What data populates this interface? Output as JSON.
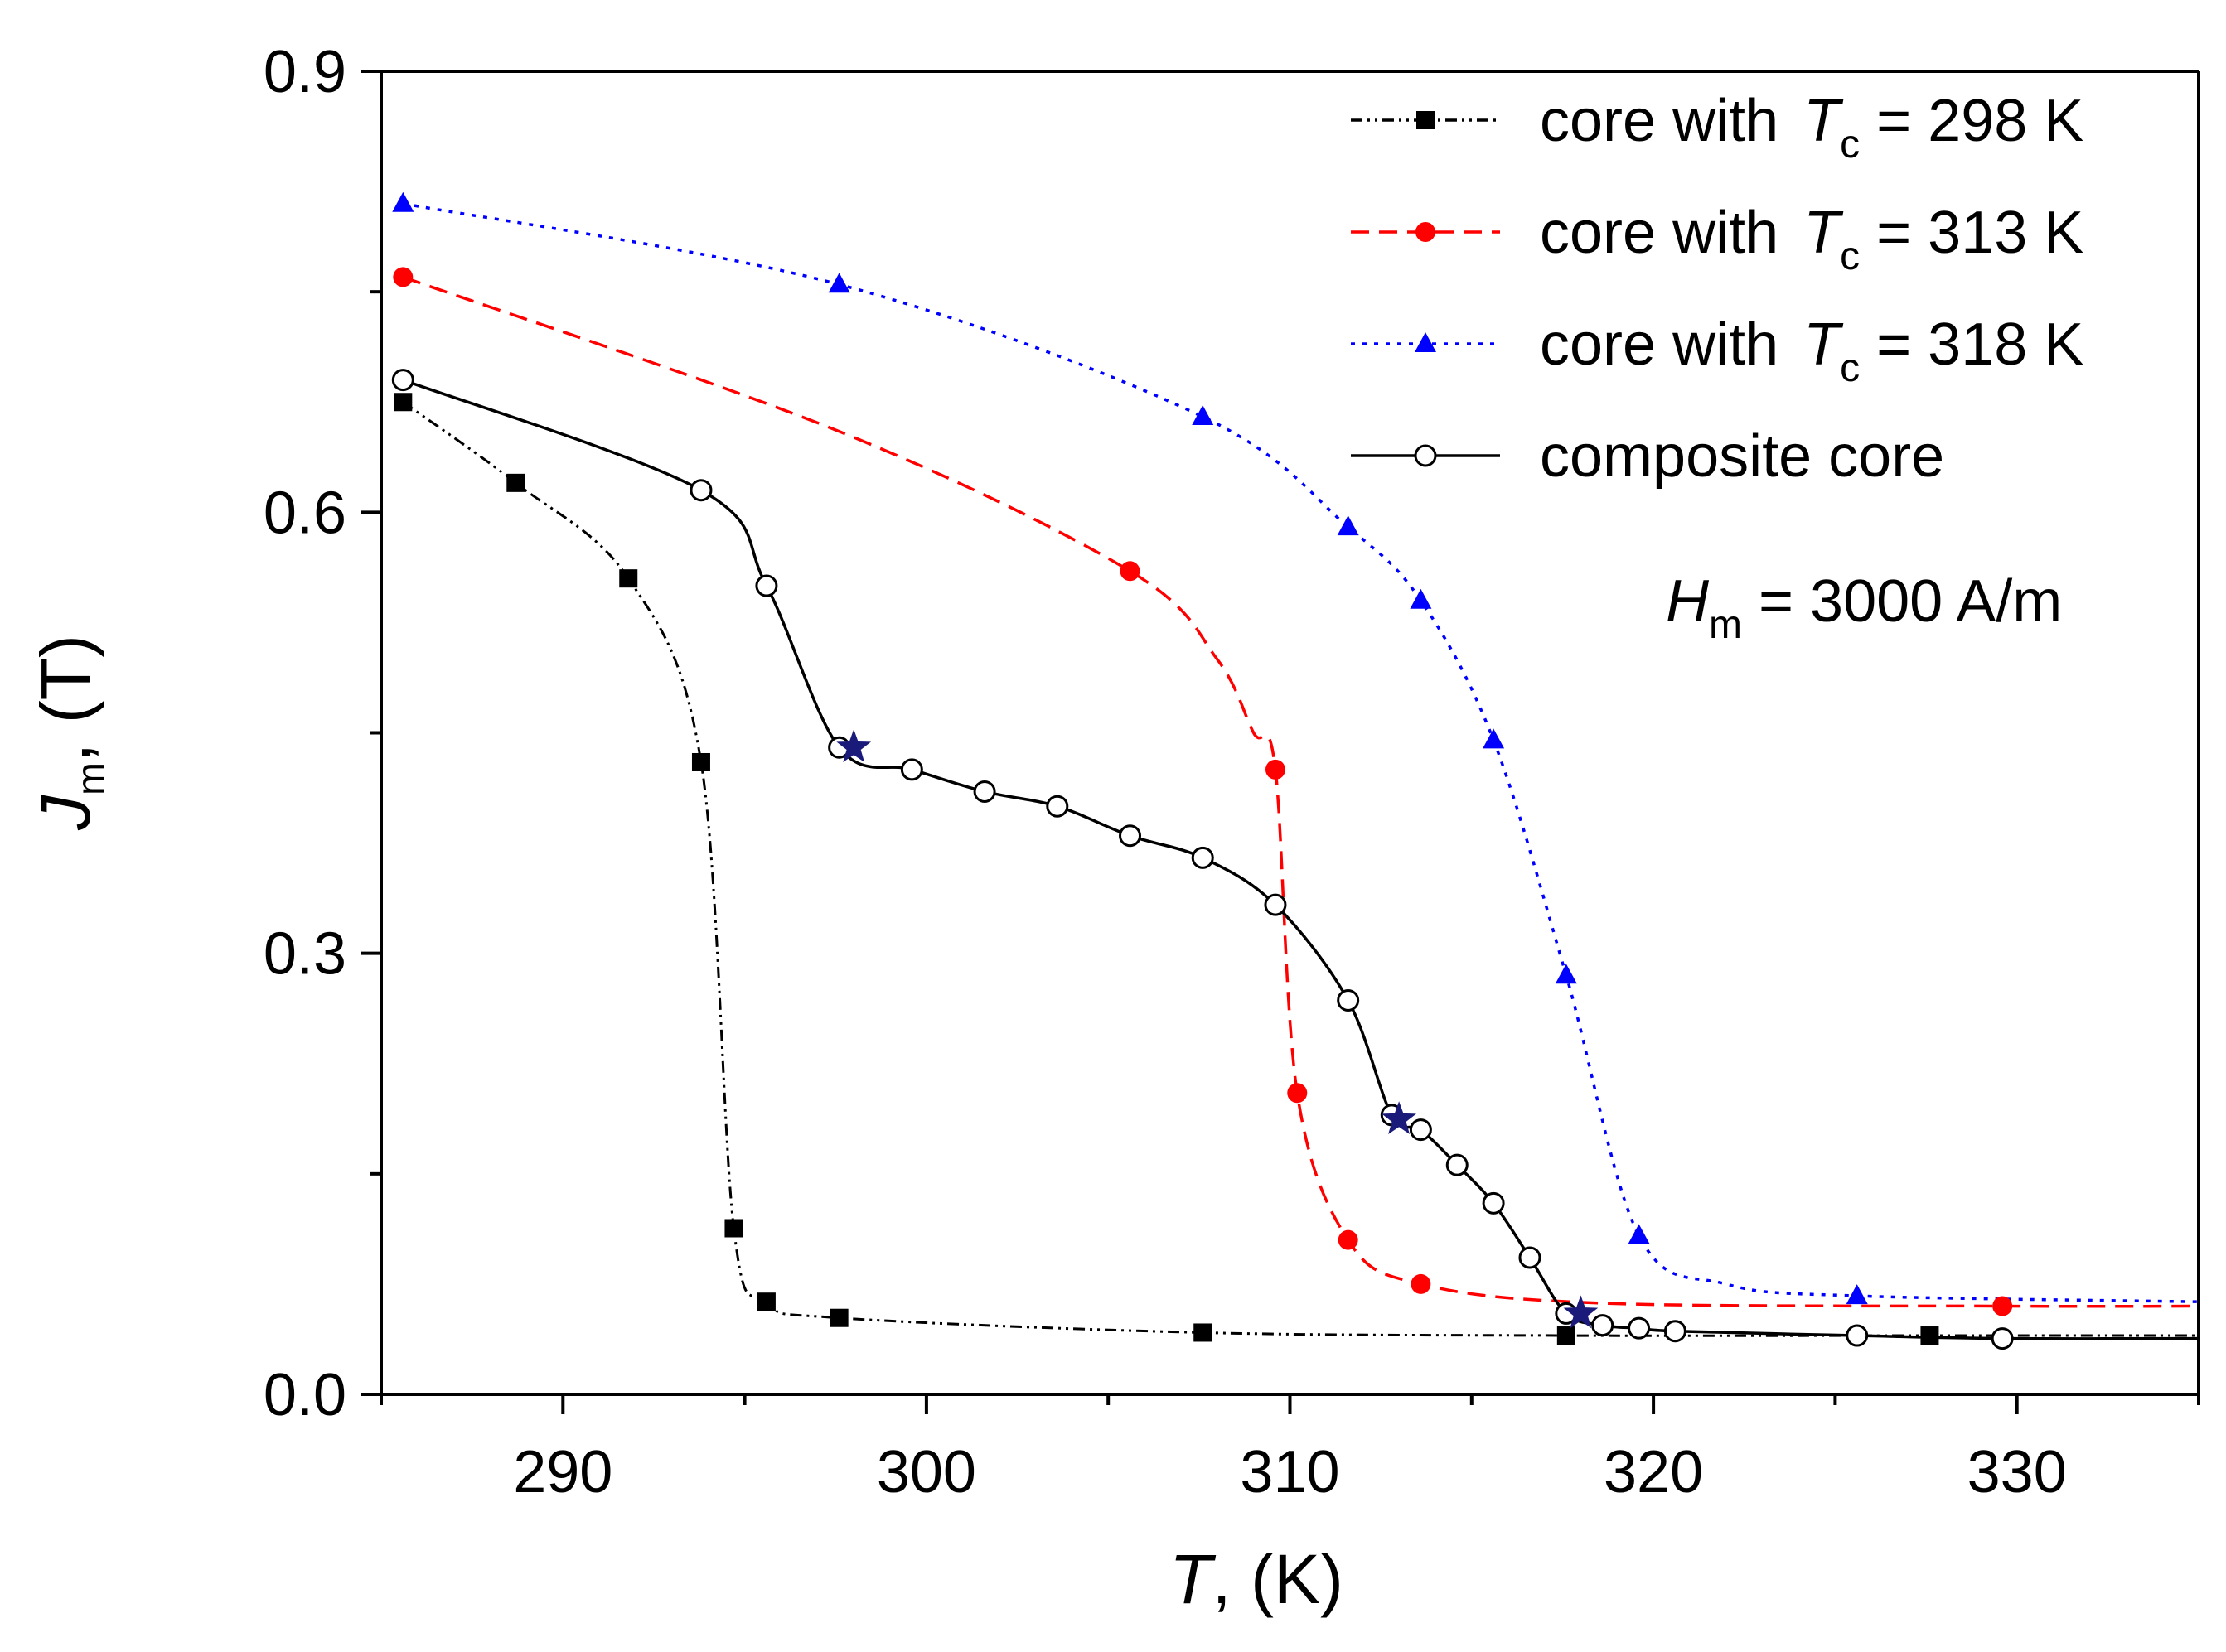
{
  "chart_data": {
    "type": "line",
    "title": "",
    "xlabel_main": "T",
    "xlabel_unit": ", (K)",
    "ylabel_main": "J",
    "ylabel_sub": "m",
    "ylabel_unit": ", (T)",
    "xlim": [
      285,
      335
    ],
    "ylim": [
      0.0,
      0.9
    ],
    "xticks": [
      290,
      300,
      310,
      320,
      330
    ],
    "xtick_labels": [
      "290",
      "300",
      "310",
      "320",
      "330"
    ],
    "yticks": [
      0.0,
      0.3,
      0.6,
      0.9
    ],
    "ytick_labels": [
      "0.0",
      "0.3",
      "0.6",
      "0.9"
    ],
    "legend_position": "top-right",
    "annotation": {
      "main": "H",
      "sub": "m",
      "rest": " = 3000 A/m"
    },
    "series": [
      {
        "key": "tc298",
        "legend_prefix": "core with ",
        "legend_var": "T",
        "legend_sub": "c",
        "legend_rest": " = 298 K",
        "color": "#000000",
        "dash": "14,6,3,6,3,6",
        "marker": "square",
        "points": [
          [
            285.6,
            0.675
          ],
          [
            288.7,
            0.62
          ],
          [
            291.8,
            0.555
          ],
          [
            293.8,
            0.43
          ],
          [
            294.7,
            0.113
          ],
          [
            295.6,
            0.063
          ],
          [
            297.6,
            0.052
          ],
          [
            307.6,
            0.042
          ],
          [
            317.6,
            0.04
          ],
          [
            327.6,
            0.04
          ],
          [
            329.6,
            0.04
          ],
          [
            335,
            0.04
          ]
        ],
        "marker_points": [
          [
            285.6,
            0.675
          ],
          [
            288.7,
            0.62
          ],
          [
            291.8,
            0.555
          ],
          [
            293.8,
            0.43
          ],
          [
            294.7,
            0.113
          ],
          [
            295.6,
            0.063
          ],
          [
            297.6,
            0.052
          ],
          [
            307.6,
            0.042
          ],
          [
            317.6,
            0.04
          ],
          [
            327.6,
            0.04
          ]
        ]
      },
      {
        "key": "tc313",
        "legend_prefix": "core with ",
        "legend_var": "T",
        "legend_sub": "c",
        "legend_rest": " = 313 K",
        "color": "#ff0000",
        "dash": "22,12",
        "marker": "circle",
        "points": [
          [
            285.6,
            0.76
          ],
          [
            297.6,
            0.655
          ],
          [
            305.6,
            0.56
          ],
          [
            308.0,
            0.5
          ],
          [
            309.0,
            0.45
          ],
          [
            309.6,
            0.425
          ],
          [
            310.2,
            0.205
          ],
          [
            311.6,
            0.105
          ],
          [
            313.6,
            0.075
          ],
          [
            318.6,
            0.062
          ],
          [
            329.6,
            0.06
          ],
          [
            335,
            0.06
          ]
        ],
        "marker_points": [
          [
            285.6,
            0.76
          ],
          [
            305.6,
            0.56
          ],
          [
            309.6,
            0.425
          ],
          [
            310.2,
            0.205
          ],
          [
            311.6,
            0.105
          ],
          [
            313.6,
            0.075
          ],
          [
            329.6,
            0.06
          ]
        ]
      },
      {
        "key": "tc318",
        "legend_prefix": "core with ",
        "legend_var": "T",
        "legend_sub": "c",
        "legend_rest": " = 318 K",
        "color": "#0000ff",
        "dash": "5,9",
        "marker": "triangle",
        "points": [
          [
            285.6,
            0.81
          ],
          [
            297.6,
            0.755
          ],
          [
            307.6,
            0.665
          ],
          [
            311.6,
            0.59
          ],
          [
            313.6,
            0.54
          ],
          [
            315.6,
            0.445
          ],
          [
            317.6,
            0.285
          ],
          [
            319.6,
            0.108
          ],
          [
            322.0,
            0.075
          ],
          [
            325.6,
            0.067
          ],
          [
            335,
            0.063
          ]
        ],
        "marker_points": [
          [
            285.6,
            0.81
          ],
          [
            297.6,
            0.755
          ],
          [
            307.6,
            0.665
          ],
          [
            311.6,
            0.59
          ],
          [
            313.6,
            0.54
          ],
          [
            315.6,
            0.445
          ],
          [
            317.6,
            0.285
          ],
          [
            319.6,
            0.108
          ],
          [
            325.6,
            0.067
          ]
        ]
      },
      {
        "key": "composite",
        "legend_prefix": "composite core",
        "legend_var": "",
        "legend_sub": "",
        "legend_rest": "",
        "color": "#000000",
        "dash": "",
        "marker": "open-circle",
        "points": [
          [
            285.6,
            0.69
          ],
          [
            293.8,
            0.615
          ],
          [
            295.6,
            0.55
          ],
          [
            297.6,
            0.44
          ],
          [
            299.6,
            0.425
          ],
          [
            301.6,
            0.41
          ],
          [
            303.6,
            0.4
          ],
          [
            305.6,
            0.38
          ],
          [
            307.6,
            0.365
          ],
          [
            309.6,
            0.333
          ],
          [
            311.6,
            0.268
          ],
          [
            312.8,
            0.19
          ],
          [
            313.6,
            0.18
          ],
          [
            314.6,
            0.156
          ],
          [
            315.6,
            0.13
          ],
          [
            316.6,
            0.093
          ],
          [
            317.6,
            0.055
          ],
          [
            318.6,
            0.047
          ],
          [
            319.6,
            0.045
          ],
          [
            320.6,
            0.043
          ],
          [
            325.6,
            0.04
          ],
          [
            329.6,
            0.038
          ],
          [
            335,
            0.038
          ]
        ],
        "marker_points": [
          [
            285.6,
            0.69
          ],
          [
            293.8,
            0.615
          ],
          [
            295.6,
            0.55
          ],
          [
            297.6,
            0.44
          ],
          [
            299.6,
            0.425
          ],
          [
            301.6,
            0.41
          ],
          [
            303.6,
            0.4
          ],
          [
            305.6,
            0.38
          ],
          [
            307.6,
            0.365
          ],
          [
            309.6,
            0.333
          ],
          [
            311.6,
            0.268
          ],
          [
            312.8,
            0.19
          ],
          [
            313.6,
            0.18
          ],
          [
            314.6,
            0.156
          ],
          [
            315.6,
            0.13
          ],
          [
            316.6,
            0.093
          ],
          [
            317.6,
            0.055
          ],
          [
            318.6,
            0.047
          ],
          [
            319.6,
            0.045
          ],
          [
            320.6,
            0.043
          ],
          [
            325.6,
            0.04
          ],
          [
            329.6,
            0.038
          ]
        ]
      }
    ],
    "star_markers": {
      "color": "#1a1a7a",
      "points": [
        [
          298.0,
          0.44
        ],
        [
          313.0,
          0.187
        ],
        [
          318.0,
          0.055
        ]
      ]
    }
  }
}
